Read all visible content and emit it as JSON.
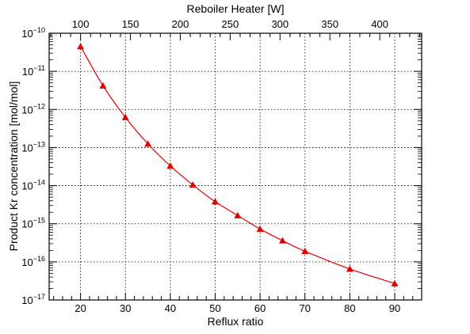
{
  "chart_data": {
    "type": "line",
    "title": "",
    "xlabel": "Reflux ratio",
    "x2label": "Reboiler Heater [W]",
    "ylabel": "Product Kr concentration [mol/mol]",
    "yscale": "log",
    "xlim": [
      13,
      96
    ],
    "ylim": [
      1e-17,
      1e-10
    ],
    "x_ticks": [
      20,
      30,
      40,
      50,
      60,
      70,
      80,
      90
    ],
    "x_tick_labels": [
      "20",
      "30",
      "40",
      "50",
      "60",
      "70",
      "80",
      "90"
    ],
    "x2_ticks": [
      100,
      150,
      200,
      250,
      300,
      350,
      400
    ],
    "x2_tick_labels": [
      "100",
      "150",
      "200",
      "250",
      "300",
      "350",
      "400"
    ],
    "x2_reference": {
      "x": [
        20,
        90
      ],
      "x2": [
        100,
        415
      ]
    },
    "y_tick_exponents": [
      -10,
      -11,
      -12,
      -13,
      -14,
      -15,
      -16,
      -17
    ],
    "y_tick_base": "10",
    "grid": true,
    "series": [
      {
        "color": "#e00000",
        "marker": "triangle",
        "x": [
          20,
          25,
          30,
          35,
          40,
          45,
          50,
          55,
          60,
          65,
          70,
          80,
          90
        ],
        "y": [
          4.5e-11,
          4.2e-12,
          6.2e-13,
          1.25e-13,
          3.3e-14,
          1.05e-14,
          3.8e-15,
          1.65e-15,
          7.3e-16,
          3.6e-16,
          1.9e-16,
          6.5e-17,
          2.7e-17
        ]
      }
    ]
  }
}
